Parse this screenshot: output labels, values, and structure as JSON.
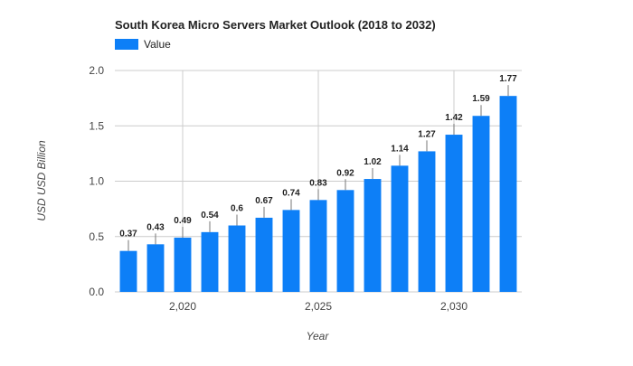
{
  "chart_data": {
    "type": "bar",
    "title": "South Korea Micro Servers Market Outlook (2018 to 2032)",
    "legend": {
      "label": "Value",
      "color": "#0d7ff7",
      "placement": "top-left"
    },
    "xlabel": "Year",
    "ylabel": "USD USD Billion",
    "x": [
      2018,
      2019,
      2020,
      2021,
      2022,
      2023,
      2024,
      2025,
      2026,
      2027,
      2028,
      2029,
      2030,
      2031,
      2032
    ],
    "values": [
      0.37,
      0.43,
      0.49,
      0.54,
      0.6,
      0.67,
      0.74,
      0.83,
      0.92,
      1.02,
      1.14,
      1.27,
      1.42,
      1.59,
      1.77
    ],
    "data_labels": [
      "0.37",
      "0.43",
      "0.49",
      "0.54",
      "0.6",
      "0.67",
      "0.74",
      "0.83",
      "0.92",
      "1.02",
      "1.14",
      "1.27",
      "1.42",
      "1.59",
      "1.77"
    ],
    "xlim": [
      2017.5,
      2032.5
    ],
    "x_ticks": [
      2020,
      2025,
      2030
    ],
    "x_tick_labels": [
      "2,020",
      "2,025",
      "2,030"
    ],
    "ylim": [
      0,
      2.0
    ],
    "y_ticks": [
      0,
      0.5,
      1.0,
      1.5,
      2.0
    ],
    "y_tick_labels": [
      "0.0",
      "0.5",
      "1.0",
      "1.5",
      "2.0"
    ],
    "grid": true,
    "colors": {
      "bar": "#0d7ff7",
      "grid": "#cccccc",
      "text": "#222222",
      "axis_text": "#444444"
    }
  }
}
